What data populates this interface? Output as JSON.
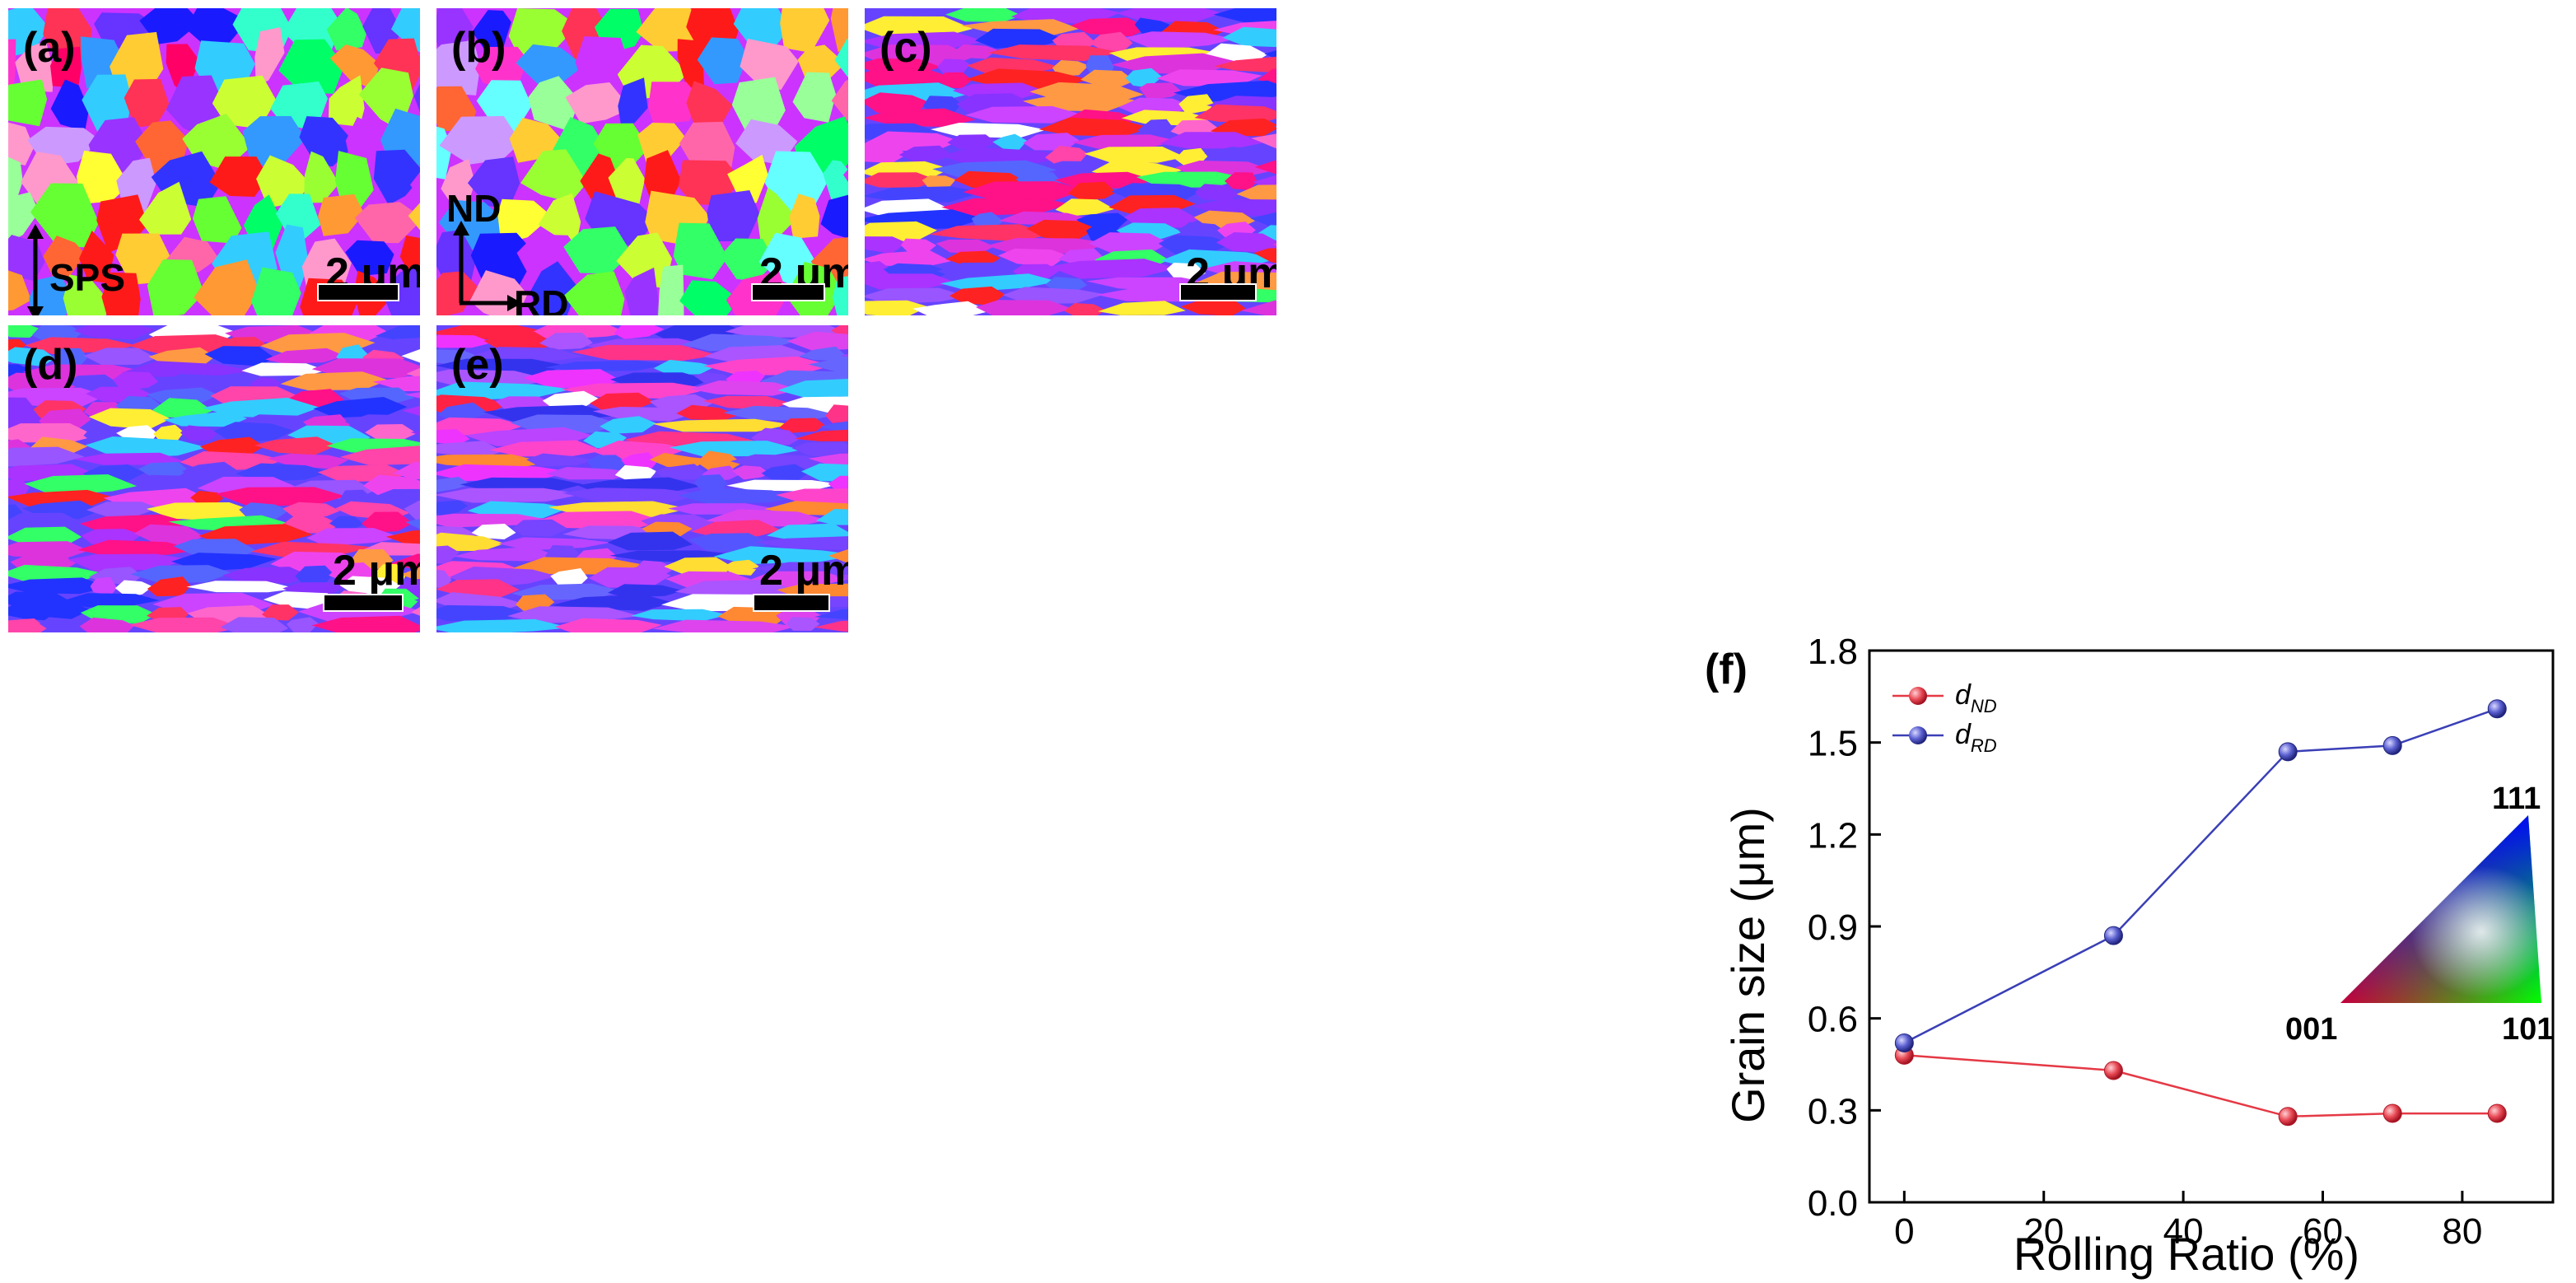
{
  "panels": [
    {
      "id": "a",
      "label": "(a)",
      "scale": "2 μm",
      "axis": "SPS"
    },
    {
      "id": "b",
      "label": "(b)",
      "scale": "2 μm",
      "axis_v": "ND",
      "axis_h": "RD"
    },
    {
      "id": "c",
      "label": "(c)",
      "scale": "2 μm"
    },
    {
      "id": "d",
      "label": "(d)",
      "scale": "2 μm"
    },
    {
      "id": "e",
      "label": "(e)",
      "scale": "2 μm"
    }
  ],
  "chart_data": {
    "type": "line",
    "panel_label": "(f)",
    "xlabel": "Rolling Ratio (%)",
    "ylabel": "Grain size (μm)",
    "xlim": [
      -5,
      93
    ],
    "ylim": [
      0,
      1.8
    ],
    "xticks": [
      0,
      20,
      40,
      60,
      80
    ],
    "yticks": [
      0.0,
      0.3,
      0.6,
      0.9,
      1.2,
      1.5,
      1.8
    ],
    "x": [
      0,
      30,
      55,
      70,
      85
    ],
    "series": [
      {
        "name": "d",
        "sub": "ND",
        "color": "#e53945",
        "values": [
          0.48,
          0.43,
          0.28,
          0.29,
          0.29
        ]
      },
      {
        "name": "d",
        "sub": "RD",
        "color": "#3a3fb6",
        "values": [
          0.52,
          0.87,
          1.47,
          1.49,
          1.61
        ]
      }
    ],
    "inset": {
      "type": "ipf-triangle",
      "corners": [
        "001",
        "101",
        "111"
      ]
    }
  }
}
